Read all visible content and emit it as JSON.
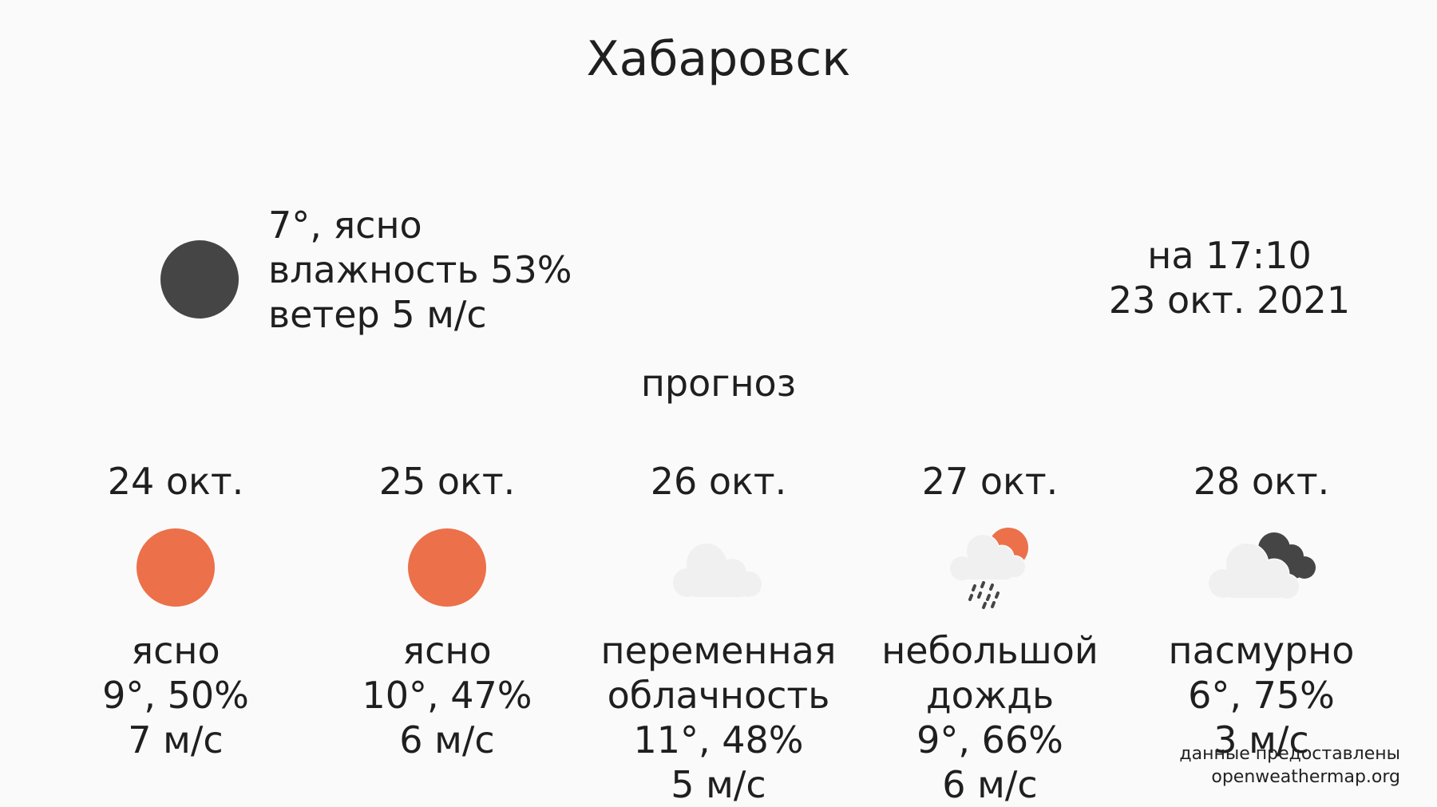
{
  "city": "Хабаровск",
  "current": {
    "icon": "moon-icon",
    "temp_desc": "7°, ясно",
    "humidity": "влажность 53%",
    "wind": "ветер 5 м/с"
  },
  "updated": {
    "time": "на 17:10",
    "date": "23 окт. 2021"
  },
  "forecast_title": "прогноз",
  "forecast": [
    {
      "date": "24 окт.",
      "icon": "sun-icon",
      "desc": [
        "ясно"
      ],
      "temp_humidity": "9°, 50%",
      "wind": "7 м/с"
    },
    {
      "date": "25 окт.",
      "icon": "sun-icon",
      "desc": [
        "ясно"
      ],
      "temp_humidity": "10°, 47%",
      "wind": "6 м/с"
    },
    {
      "date": "26 окт.",
      "icon": "cloud-icon",
      "desc": [
        "переменная",
        "облачность"
      ],
      "temp_humidity": "11°, 48%",
      "wind": "5 м/с"
    },
    {
      "date": "27 окт.",
      "icon": "rain-sun-cloud-icon",
      "desc": [
        "небольшой",
        "дождь"
      ],
      "temp_humidity": "9°, 66%",
      "wind": "6 м/с"
    },
    {
      "date": "28 окт.",
      "icon": "overcast-clouds-icon",
      "desc": [
        "пасмурно"
      ],
      "temp_humidity": "6°, 75%",
      "wind": "3 м/с"
    }
  ],
  "credit": {
    "line1": "данные предоставлены",
    "line2": "openweathermap.org"
  },
  "colors": {
    "sun": "#ec704a",
    "moon": "#454545",
    "cloud_light": "#f0f0f0",
    "cloud_dark": "#454545",
    "rain": "#454545"
  }
}
